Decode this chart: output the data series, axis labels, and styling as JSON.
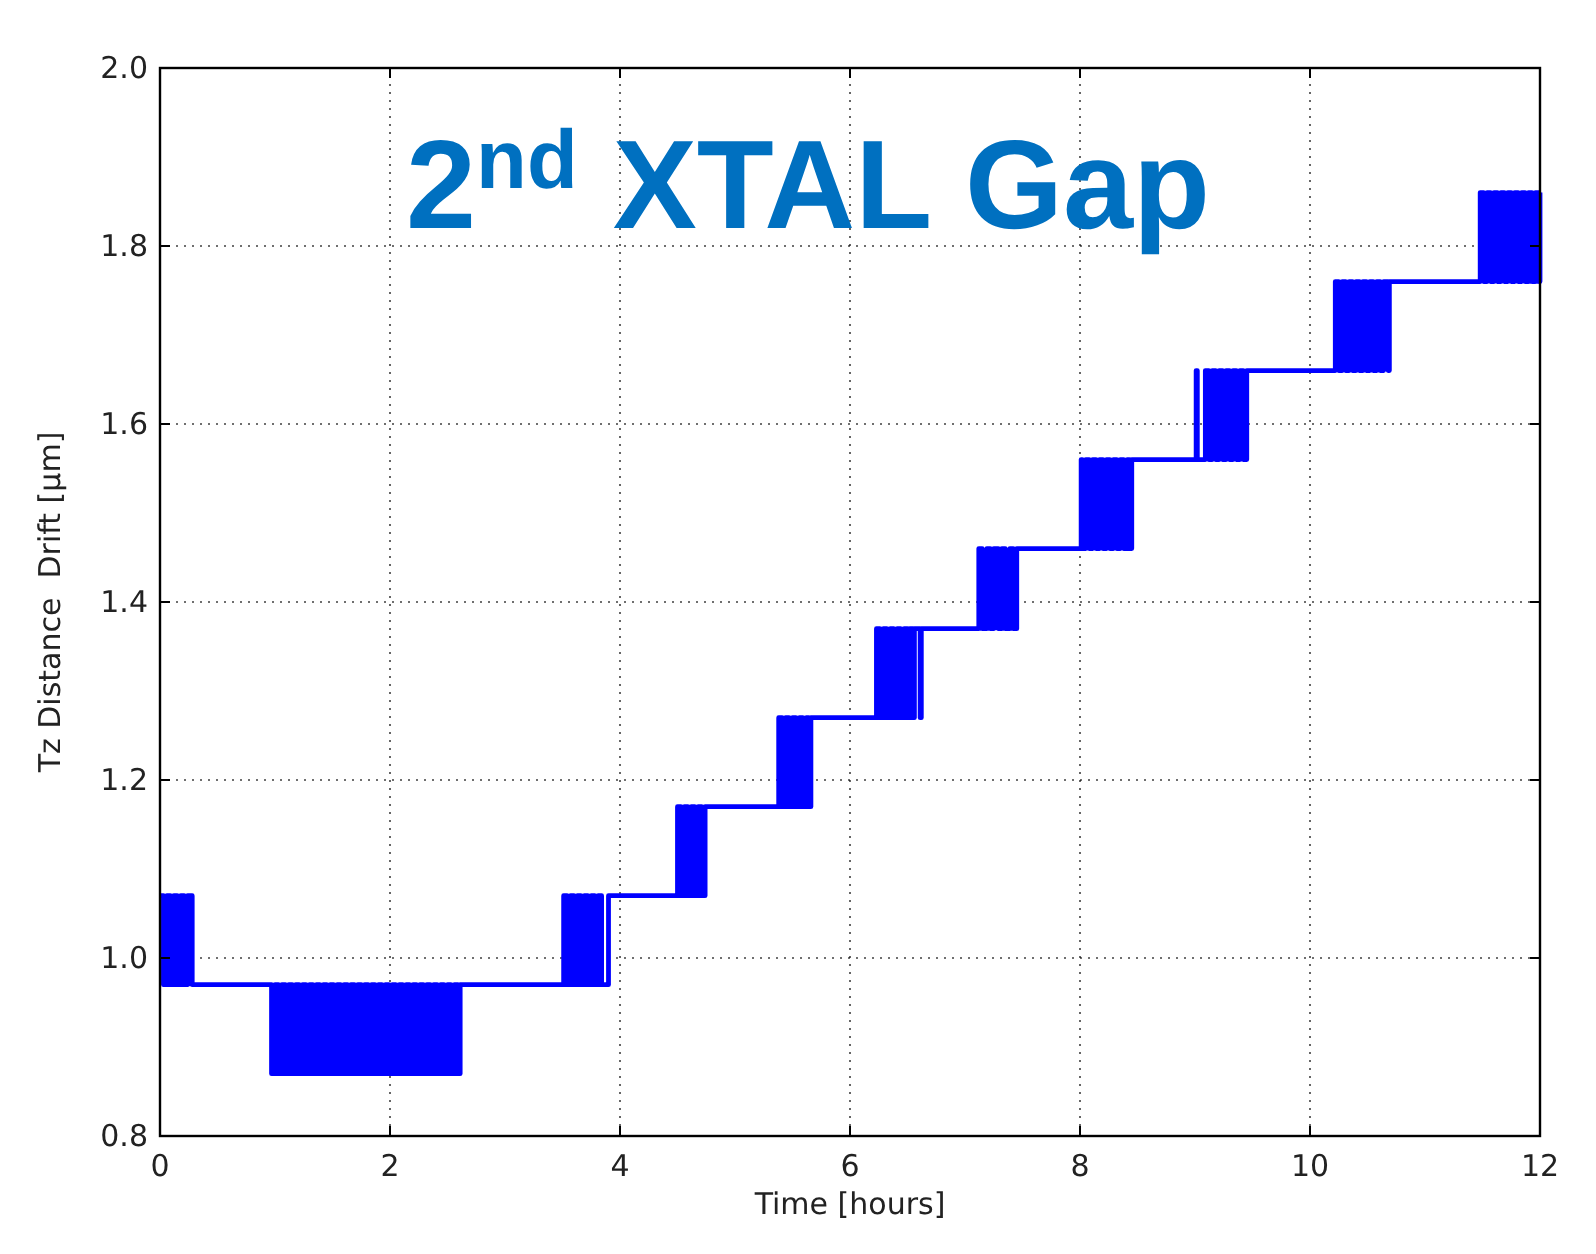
{
  "chart_data": {
    "type": "step",
    "title": "2$^{nd}$ XTAL Gap",
    "xlabel": "Time [hours]",
    "ylabel": "Tz Distance  Drift [μm]",
    "color": "#0000ff",
    "line_style": "solid",
    "grid": true,
    "xlim": [
      0,
      12
    ],
    "ylim": [
      0.8,
      2.0
    ],
    "xticks": [
      0,
      2,
      4,
      6,
      8,
      10,
      12
    ],
    "yticks": [
      0.8,
      {
        "value": 1.0,
        "label": "1.0"
      },
      1.2,
      1.4,
      1.6,
      1.8,
      {
        "value": 2.0,
        "label": "2.0"
      }
    ],
    "x": [
      0,
      0.03,
      0.06,
      0.09,
      0.12,
      0.15,
      0.18,
      0.21,
      0.24,
      0.28,
      0.97,
      1,
      1.03,
      1.06,
      1.09,
      1.12,
      1.15,
      1.18,
      1.21,
      1.24,
      1.27,
      1.3,
      1.33,
      1.36,
      1.39,
      1.42,
      1.45,
      1.48,
      1.51,
      1.54,
      1.57,
      1.6,
      1.63,
      1.66,
      1.69,
      1.72,
      1.75,
      1.78,
      1.81,
      1.84,
      1.87,
      1.9,
      1.93,
      1.96,
      1.99,
      2.02,
      2.05,
      2.08,
      2.11,
      2.14,
      2.17,
      2.2,
      2.23,
      2.26,
      2.29,
      2.32,
      2.35,
      2.38,
      2.41,
      2.44,
      2.47,
      2.5,
      2.53,
      2.56,
      2.59,
      2.61,
      3.51,
      3.54,
      3.57,
      3.6,
      3.63,
      3.66,
      3.69,
      3.72,
      3.75,
      3.78,
      3.81,
      3.84,
      3.9,
      4.5,
      4.53,
      4.56,
      4.59,
      4.62,
      4.65,
      4.68,
      4.71,
      4.74,
      5.38,
      5.41,
      5.44,
      5.47,
      5.5,
      5.53,
      5.56,
      5.59,
      5.62,
      5.64,
      5.66,
      6.23,
      6.26,
      6.29,
      6.32,
      6.35,
      6.38,
      6.41,
      6.44,
      6.47,
      6.5,
      6.52,
      6.55,
      6.56,
      6.61,
      6.62,
      7.12,
      7.15,
      7.19,
      7.22,
      7.25,
      7.29,
      7.32,
      7.35,
      7.39,
      7.42,
      7.45,
      8.01,
      8.02,
      8.05,
      8.08,
      8.11,
      8.14,
      8.17,
      8.2,
      8.23,
      8.26,
      8.29,
      8.32,
      8.35,
      8.38,
      8.41,
      8.43,
      8.45,
      9.01,
      9.02,
      9.09,
      9.12,
      9.15,
      9.18,
      9.21,
      9.24,
      9.27,
      9.3,
      9.33,
      9.36,
      9.39,
      9.42,
      9.45,
      10.22,
      10.25,
      10.28,
      10.31,
      10.34,
      10.37,
      10.4,
      10.43,
      10.46,
      10.49,
      10.52,
      10.55,
      10.58,
      10.61,
      10.64,
      10.68,
      10.69,
      11.48,
      11.51,
      11.54,
      11.57,
      11.6,
      11.63,
      11.66,
      11.69,
      11.72,
      11.75,
      11.78,
      11.81,
      11.84,
      11.87,
      11.9,
      11.93,
      11.96,
      11.99,
      12
    ],
    "values": [
      1.07,
      0.97,
      1.07,
      0.97,
      1.07,
      0.97,
      1.07,
      0.97,
      1.07,
      0.97,
      0.87,
      0.97,
      0.87,
      0.97,
      0.87,
      0.97,
      0.87,
      0.97,
      0.87,
      0.97,
      0.87,
      0.97,
      0.87,
      0.97,
      0.87,
      0.97,
      0.87,
      0.97,
      0.87,
      0.97,
      0.87,
      0.97,
      0.87,
      0.97,
      0.87,
      0.97,
      0.87,
      0.97,
      0.87,
      0.97,
      0.87,
      0.97,
      0.87,
      0.97,
      0.87,
      0.97,
      0.87,
      0.97,
      0.87,
      0.97,
      0.87,
      0.97,
      0.87,
      0.97,
      0.87,
      0.97,
      0.87,
      0.97,
      0.87,
      0.97,
      0.87,
      0.97,
      0.87,
      0.97,
      0.87,
      0.97,
      1.07,
      0.97,
      1.07,
      0.97,
      1.07,
      0.97,
      1.07,
      0.97,
      1.07,
      0.97,
      1.07,
      0.97,
      1.07,
      1.17,
      1.07,
      1.17,
      1.07,
      1.17,
      1.07,
      1.17,
      1.07,
      1.17,
      1.27,
      1.17,
      1.27,
      1.17,
      1.27,
      1.17,
      1.27,
      1.17,
      1.27,
      1.17,
      1.27,
      1.37,
      1.27,
      1.37,
      1.27,
      1.37,
      1.27,
      1.37,
      1.27,
      1.37,
      1.27,
      1.37,
      1.27,
      1.37,
      1.27,
      1.37,
      1.46,
      1.37,
      1.46,
      1.37,
      1.46,
      1.37,
      1.46,
      1.37,
      1.46,
      1.37,
      1.46,
      1.56,
      1.46,
      1.56,
      1.46,
      1.56,
      1.46,
      1.56,
      1.46,
      1.56,
      1.46,
      1.56,
      1.46,
      1.56,
      1.46,
      1.56,
      1.46,
      1.56,
      1.66,
      1.56,
      1.66,
      1.56,
      1.66,
      1.56,
      1.66,
      1.56,
      1.66,
      1.56,
      1.66,
      1.56,
      1.66,
      1.56,
      1.66,
      1.76,
      1.66,
      1.76,
      1.66,
      1.76,
      1.66,
      1.76,
      1.66,
      1.76,
      1.66,
      1.76,
      1.66,
      1.76,
      1.66,
      1.76,
      1.66,
      1.76,
      1.86,
      1.76,
      1.86,
      1.76,
      1.86,
      1.76,
      1.86,
      1.76,
      1.86,
      1.76,
      1.86,
      1.76,
      1.86,
      1.76,
      1.86,
      1.76,
      1.86,
      1.76,
      1.86
    ]
  }
}
